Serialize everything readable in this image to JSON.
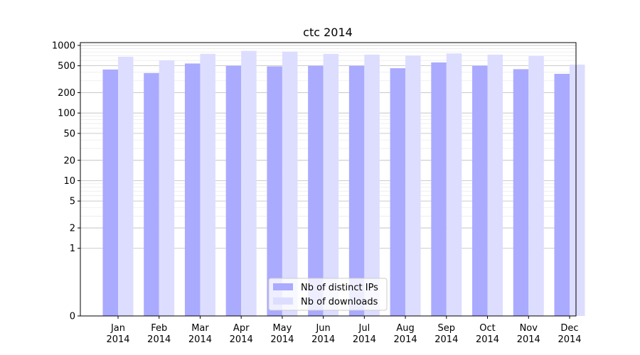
{
  "chart_data": {
    "type": "bar",
    "title": "ctc 2014",
    "xlabel": "",
    "ylabel": "",
    "yscale": "symlog",
    "ylim": [
      0,
      1100
    ],
    "yticks": [
      0,
      1,
      2,
      5,
      10,
      20,
      50,
      100,
      200,
      500,
      1000
    ],
    "ytick_labels": [
      "0",
      "1",
      "2",
      "5",
      "10",
      "20",
      "50",
      "100",
      "200",
      "500",
      "1000"
    ],
    "categories": [
      [
        "Jan",
        "2014"
      ],
      [
        "Feb",
        "2014"
      ],
      [
        "Mar",
        "2014"
      ],
      [
        "Apr",
        "2014"
      ],
      [
        "May",
        "2014"
      ],
      [
        "Jun",
        "2014"
      ],
      [
        "Jul",
        "2014"
      ],
      [
        "Aug",
        "2014"
      ],
      [
        "Sep",
        "2014"
      ],
      [
        "Oct",
        "2014"
      ],
      [
        "Nov",
        "2014"
      ],
      [
        "Dec",
        "2014"
      ]
    ],
    "series": [
      {
        "name": "Nb of distinct IPs",
        "color": "#aaaaff",
        "values": [
          440,
          390,
          540,
          500,
          490,
          500,
          500,
          460,
          560,
          500,
          445,
          380
        ]
      },
      {
        "name": "Nb of downloads",
        "color": "#ddddff",
        "values": [
          680,
          600,
          750,
          830,
          810,
          750,
          730,
          710,
          760,
          730,
          700,
          520
        ]
      }
    ],
    "grid": true,
    "legend_position": "lower center"
  }
}
